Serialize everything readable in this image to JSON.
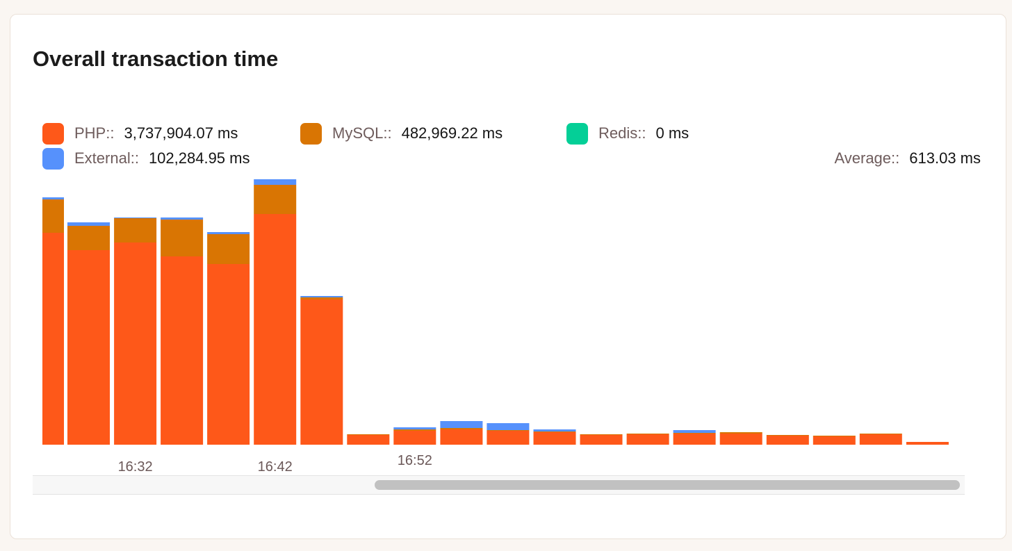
{
  "card": {
    "title": "Overall transaction time"
  },
  "legend": {
    "items": [
      {
        "label": "PHP::",
        "value": "3,737,904.07 ms",
        "color": "#fe5819"
      },
      {
        "label": "MySQL::",
        "value": "482,969.22 ms",
        "color": "#d97503"
      },
      {
        "label": "Redis::",
        "value": "0 ms",
        "color": "#04cf97"
      },
      {
        "label": "External::",
        "value": "102,284.95 ms",
        "color": "#5691fc"
      }
    ],
    "average_label": "Average::",
    "average_value": "613.03 ms"
  },
  "chart_data": {
    "type": "bar",
    "stacked": true,
    "title": "Overall transaction time",
    "x_tick_labels": [
      "16:32",
      "16:42",
      "16:52"
    ],
    "x_tick_positions": [
      2,
      5,
      8
    ],
    "ylim": [
      0,
      385
    ],
    "grid": false,
    "legend_position": "top",
    "series": [
      {
        "name": "PHP",
        "color": "#fe5819",
        "values": [
          305,
          280,
          291,
          271,
          260,
          332,
          209,
          14,
          20,
          22,
          20,
          18,
          14,
          15,
          16,
          16,
          13,
          12,
          15,
          4
        ]
      },
      {
        "name": "MySQL",
        "color": "#d97503",
        "values": [
          48,
          35,
          35,
          53,
          43,
          42,
          3,
          1,
          2,
          2,
          1,
          1,
          1,
          1,
          1,
          2,
          1,
          1,
          1,
          0
        ]
      },
      {
        "name": "Redis",
        "color": "#04cf97",
        "values": [
          0,
          0,
          0,
          0,
          0,
          0,
          0,
          0,
          0,
          0,
          0,
          0,
          0,
          0,
          0,
          0,
          0,
          0,
          0,
          0
        ]
      },
      {
        "name": "External",
        "color": "#5691fc",
        "values": [
          3,
          5,
          1,
          3,
          3,
          8,
          2,
          0,
          3,
          10,
          10,
          3,
          0,
          0,
          4,
          0,
          0,
          0,
          0,
          0
        ]
      }
    ]
  },
  "scrollbar": {
    "thumb_start": 0.367,
    "thumb_end": 0.995
  }
}
